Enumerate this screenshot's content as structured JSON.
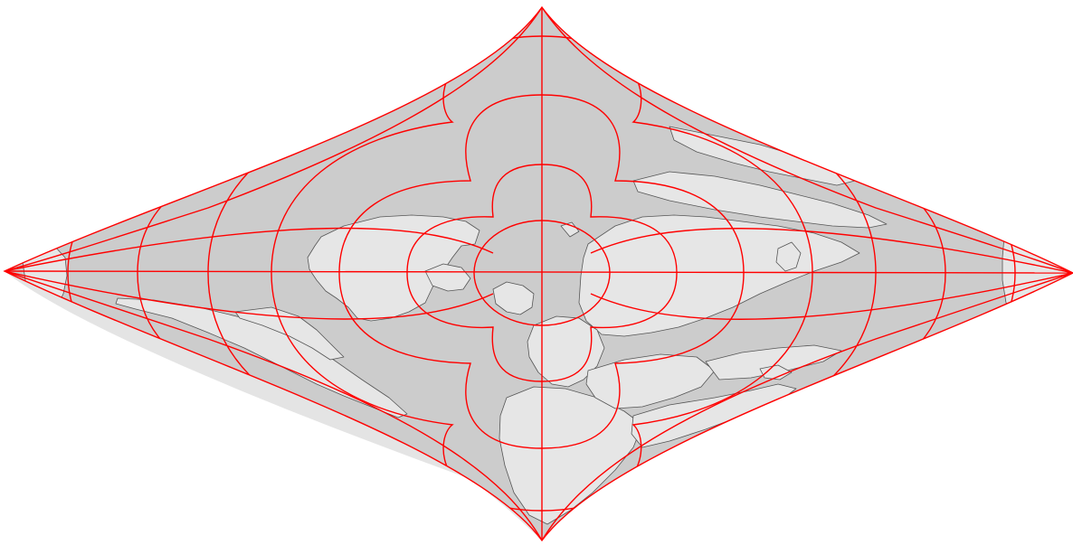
{
  "map": {
    "colors": {
      "background": "#ffffff",
      "ocean": "#cccccc",
      "land": "#e6e6e6",
      "coastline": "#555555",
      "graticule": "#ff0000"
    }
  }
}
